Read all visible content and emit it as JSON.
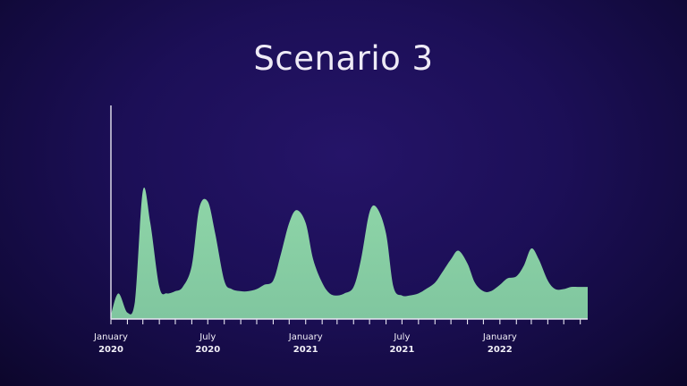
{
  "chart_data": {
    "type": "area",
    "title": "Scenario 3",
    "xlabel": "",
    "ylabel": "",
    "x_ticks": [
      {
        "month": "January",
        "year": "2020",
        "date": "2020-01"
      },
      {
        "month": "July",
        "year": "2020",
        "date": "2020-07"
      },
      {
        "month": "January",
        "year": "2021",
        "date": "2021-01"
      },
      {
        "month": "July",
        "year": "2021",
        "date": "2021-07"
      },
      {
        "month": "January",
        "year": "2022",
        "date": "2022-01"
      }
    ],
    "x_range": [
      "2020-01-01",
      "2022-06-15"
    ],
    "ylim": [
      0,
      100
    ],
    "grid": false,
    "colors": {
      "fill": "#8ad1a4",
      "axis": "#e8e6f2",
      "text": "#f2f0f8",
      "title": "#eeeaf6"
    },
    "series": [
      {
        "x": [
          "2020-01-01",
          "2020-01-15",
          "2020-02-01",
          "2020-02-15",
          "2020-03-01",
          "2020-03-15",
          "2020-04-01",
          "2020-04-15",
          "2020-05-01",
          "2020-05-15",
          "2020-06-01",
          "2020-06-15",
          "2020-07-01",
          "2020-07-15",
          "2020-08-01",
          "2020-08-15",
          "2020-09-01",
          "2020-09-15",
          "2020-10-01",
          "2020-10-15",
          "2020-11-01",
          "2020-11-15",
          "2020-12-01",
          "2020-12-15",
          "2021-01-01",
          "2021-01-15",
          "2021-02-01",
          "2021-02-15",
          "2021-03-01",
          "2021-03-15",
          "2021-04-01",
          "2021-04-15",
          "2021-05-01",
          "2021-05-15",
          "2021-06-01",
          "2021-06-15",
          "2021-07-01",
          "2021-07-15",
          "2021-08-01",
          "2021-08-15",
          "2021-09-01",
          "2021-09-15",
          "2021-10-01",
          "2021-10-15",
          "2021-11-01",
          "2021-11-15",
          "2021-12-01",
          "2021-12-15",
          "2022-01-01",
          "2022-01-15",
          "2022-02-01",
          "2022-02-15",
          "2022-03-01",
          "2022-03-15",
          "2022-04-01",
          "2022-04-15",
          "2022-05-01",
          "2022-05-15",
          "2022-06-01",
          "2022-06-15"
        ],
        "y": [
          2,
          12,
          3,
          8,
          60,
          45,
          15,
          12,
          13,
          15,
          25,
          52,
          55,
          40,
          18,
          14,
          13,
          13,
          14,
          16,
          18,
          30,
          45,
          51,
          45,
          28,
          17,
          12,
          11,
          12,
          15,
          28,
          50,
          52,
          40,
          15,
          11,
          11,
          12,
          14,
          17,
          22,
          28,
          32,
          26,
          17,
          13,
          13,
          16,
          19,
          20,
          25,
          33,
          28,
          18,
          14,
          14,
          15,
          15,
          15
        ]
      }
    ]
  }
}
